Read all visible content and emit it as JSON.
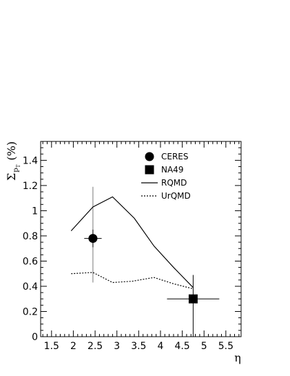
{
  "chart_data": {
    "type": "scatter",
    "xlabel": "η",
    "ylabel": {
      "symbol": "Σ",
      "subscript": "p",
      "sub_subscript": "T",
      "unit": "(%)"
    },
    "xlim": [
      1.25,
      5.85
    ],
    "ylim": [
      0,
      1.55
    ],
    "x_ticks": [
      1.5,
      2,
      2.5,
      3,
      3.5,
      4,
      4.5,
      5,
      5.5
    ],
    "x_tick_labels": [
      "1.5",
      "2",
      "2.5",
      "3",
      "3.5",
      "4",
      "4.5",
      "5",
      "5.5"
    ],
    "y_ticks": [
      0,
      0.2,
      0.4,
      0.6,
      0.8,
      1,
      1.2,
      1.4
    ],
    "y_tick_labels": [
      "0",
      "0.2",
      "0.4",
      "0.6",
      "0.8",
      "1",
      "1.2",
      "1.4"
    ],
    "grid": false,
    "legend_position": "top-center",
    "series": [
      {
        "name": "CERES",
        "kind": "points",
        "marker": "circle",
        "points": [
          {
            "x": 2.45,
            "y": 0.78,
            "xerr": 0.2,
            "yerr": 0.07,
            "ysys": [
              0.41,
              0.35
            ]
          }
        ]
      },
      {
        "name": "NA49",
        "kind": "points",
        "marker": "square",
        "points": [
          {
            "x": 4.75,
            "y": 0.3,
            "xerr": 0.6,
            "yerr": 0.19,
            "yerr_low": 0.3
          }
        ]
      },
      {
        "name": "RQMD",
        "kind": "line",
        "dash": "solid",
        "x": [
          1.95,
          2.45,
          2.9,
          3.4,
          3.85,
          4.3,
          4.75
        ],
        "y": [
          0.84,
          1.03,
          1.11,
          0.94,
          0.72,
          0.55,
          0.39
        ]
      },
      {
        "name": "UrQMD",
        "kind": "line",
        "dash": "dotted",
        "x": [
          1.95,
          2.45,
          2.9,
          3.35,
          3.85,
          4.3,
          4.75
        ],
        "y": [
          0.5,
          0.51,
          0.43,
          0.44,
          0.47,
          0.42,
          0.38
        ]
      }
    ]
  }
}
